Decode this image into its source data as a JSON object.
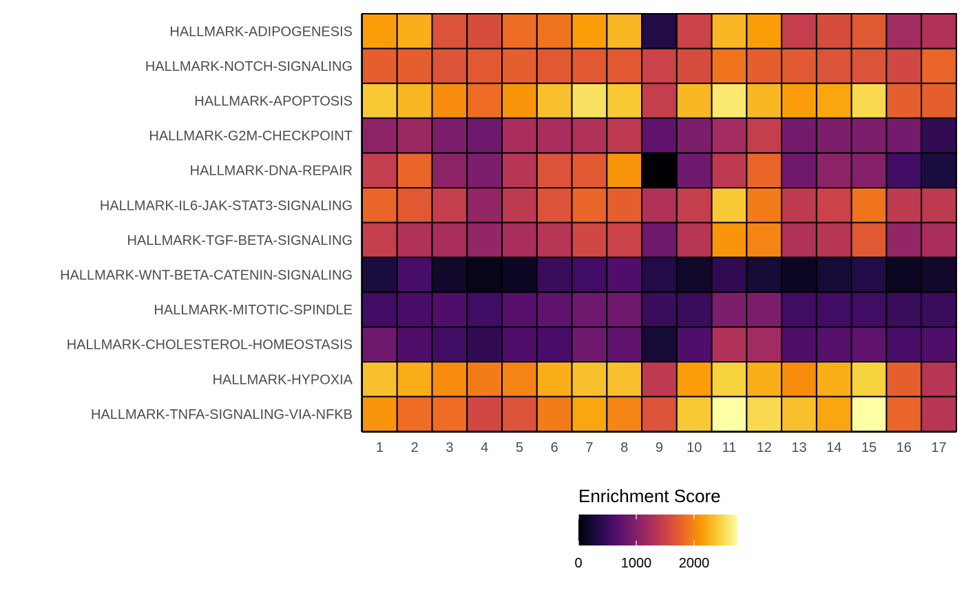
{
  "chart_data": {
    "type": "heatmap",
    "rows": [
      "HALLMARK-ADIPOGENESIS",
      "HALLMARK-NOTCH-SIGNALING",
      "HALLMARK-APOPTOSIS",
      "HALLMARK-G2M-CHECKPOINT",
      "HALLMARK-DNA-REPAIR",
      "HALLMARK-IL6-JAK-STAT3-SIGNALING",
      "HALLMARK-TGF-BETA-SIGNALING",
      "HALLMARK-WNT-BETA-CATENIN-SIGNALING",
      "HALLMARK-MITOTIC-SPINDLE",
      "HALLMARK-CHOLESTEROL-HOMEOSTASIS",
      "HALLMARK-HYPOXIA",
      "HALLMARK-TNFA-SIGNALING-VIA-NFKB"
    ],
    "columns": [
      "1",
      "2",
      "3",
      "4",
      "5",
      "6",
      "7",
      "8",
      "9",
      "10",
      "11",
      "12",
      "13",
      "14",
      "15",
      "16",
      "17"
    ],
    "values": [
      [
        2150,
        2250,
        1650,
        1600,
        1850,
        1900,
        2150,
        2300,
        350,
        1500,
        2300,
        2150,
        1450,
        1600,
        1700,
        1200,
        1300
      ],
      [
        1750,
        1750,
        1650,
        1700,
        1750,
        1700,
        1700,
        1700,
        1500,
        1600,
        1900,
        1750,
        1700,
        1650,
        1650,
        1550,
        1800
      ],
      [
        2400,
        2300,
        2050,
        1850,
        2100,
        2350,
        2550,
        2400,
        1450,
        2300,
        2600,
        2300,
        2150,
        2200,
        2500,
        1750,
        1750
      ],
      [
        1050,
        1150,
        950,
        850,
        1250,
        1250,
        1300,
        1400,
        750,
        950,
        1200,
        1450,
        900,
        950,
        950,
        900,
        450
      ],
      [
        1450,
        1800,
        1050,
        950,
        1350,
        1650,
        1700,
        2100,
        0,
        850,
        1400,
        1800,
        850,
        1050,
        1000,
        550,
        300
      ],
      [
        1800,
        1700,
        1450,
        1100,
        1400,
        1650,
        1800,
        1750,
        1300,
        1450,
        2400,
        1950,
        1400,
        1500,
        1900,
        1400,
        1400
      ],
      [
        1450,
        1300,
        1250,
        1100,
        1250,
        1350,
        1550,
        1500,
        850,
        1350,
        2100,
        2000,
        1300,
        1350,
        1700,
        1100,
        1250
      ],
      [
        300,
        600,
        200,
        100,
        150,
        500,
        550,
        650,
        350,
        200,
        450,
        250,
        150,
        250,
        350,
        150,
        200
      ],
      [
        550,
        600,
        650,
        550,
        700,
        750,
        850,
        850,
        500,
        500,
        950,
        950,
        550,
        550,
        550,
        500,
        500
      ],
      [
        850,
        650,
        550,
        450,
        650,
        600,
        850,
        750,
        250,
        650,
        1300,
        1200,
        650,
        700,
        750,
        600,
        650
      ],
      [
        2350,
        2250,
        2050,
        1950,
        2000,
        2250,
        2350,
        2350,
        1400,
        2150,
        2450,
        2250,
        2050,
        2250,
        2450,
        1750,
        1350
      ],
      [
        2100,
        1850,
        1850,
        1550,
        1650,
        1950,
        2200,
        2000,
        1650,
        2400,
        2750,
        2500,
        2350,
        2200,
        2750,
        1800,
        1350
      ]
    ],
    "colorscale": "inferno",
    "color_stops": [
      "#000004",
      "#1b0c41",
      "#4a0c6b",
      "#781c6d",
      "#a52c60",
      "#cf4446",
      "#ed6925",
      "#fb9b06",
      "#f7d13d",
      "#fcffa4"
    ],
    "color_range": [
      0,
      2750
    ],
    "cell_border_color": "#000000",
    "legend": {
      "title": "Enrichment Score",
      "ticks": [
        0,
        1000,
        2000
      ],
      "placement": "bottom-center"
    }
  }
}
